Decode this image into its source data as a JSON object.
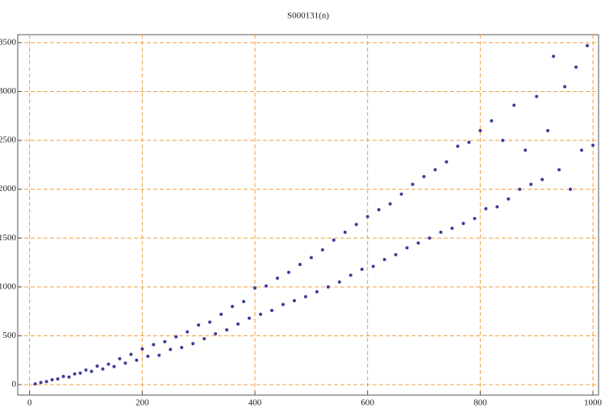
{
  "chart_data": {
    "type": "scatter",
    "title": "S000131(n)",
    "x": [
      10,
      20,
      30,
      40,
      50,
      60,
      70,
      80,
      90,
      100,
      110,
      120,
      130,
      140,
      150,
      160,
      170,
      180,
      190,
      200,
      210,
      220,
      230,
      240,
      250,
      260,
      270,
      280,
      290,
      300,
      310,
      320,
      330,
      340,
      350,
      360,
      370,
      380,
      390,
      400,
      410,
      420,
      430,
      440,
      450,
      460,
      470,
      480,
      490,
      500,
      510,
      520,
      530,
      540,
      550,
      560,
      570,
      580,
      590,
      600,
      610,
      620,
      630,
      640,
      650,
      660,
      670,
      680,
      690,
      700,
      710,
      720,
      730,
      740,
      750,
      760,
      770,
      780,
      790,
      800,
      810,
      820,
      830,
      840,
      850,
      860,
      870,
      880,
      890,
      900,
      910,
      920,
      930,
      940,
      950,
      960,
      970,
      980,
      990,
      1000
    ],
    "values": [
      7,
      22,
      31,
      50,
      58,
      84,
      78,
      110,
      118,
      150,
      135,
      190,
      160,
      210,
      185,
      265,
      220,
      310,
      250,
      365,
      290,
      410,
      300,
      440,
      360,
      490,
      380,
      540,
      420,
      610,
      470,
      640,
      520,
      720,
      560,
      800,
      620,
      850,
      680,
      990,
      720,
      1010,
      760,
      1090,
      820,
      1150,
      860,
      1230,
      900,
      1300,
      950,
      1380,
      1000,
      1480,
      1050,
      1560,
      1120,
      1640,
      1180,
      1720,
      1210,
      1790,
      1280,
      1850,
      1330,
      1950,
      1400,
      2050,
      1450,
      2130,
      1500,
      2200,
      1560,
      2280,
      1600,
      2440,
      1650,
      2480,
      1700,
      2600,
      1800,
      2700,
      1820,
      2500,
      1900,
      2860,
      2000,
      2400,
      2050,
      2950,
      2100,
      2600,
      3360,
      2200,
      3050,
      2000,
      3250,
      2400,
      3470,
      2450
    ],
    "color": "#3d3d99",
    "xlim": [
      -21,
      1010
    ],
    "ylim": [
      -107,
      3582
    ],
    "xticks": [
      0,
      200,
      400,
      600,
      800,
      1000
    ],
    "yticks": [
      0,
      500,
      1000,
      1500,
      2000,
      2500,
      3000,
      3500
    ],
    "grid": true,
    "grid_color": "#f0a040"
  }
}
